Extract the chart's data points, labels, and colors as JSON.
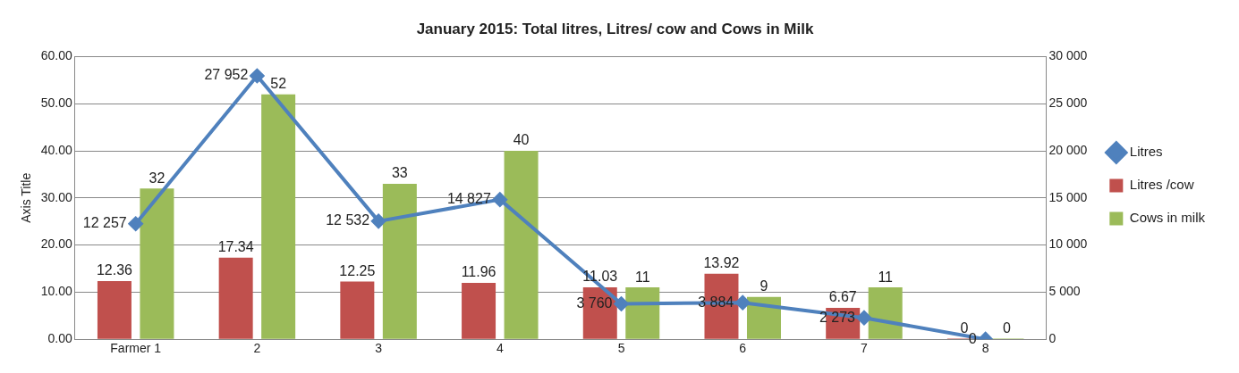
{
  "chart_data": {
    "type": "bar",
    "title": "January 2015: Total litres, Litres/ cow and Cows in Milk",
    "ylabel": "Axis Title",
    "categories": [
      "Farmer 1",
      "2",
      "3",
      "4",
      "5",
      "6",
      "7",
      "8"
    ],
    "series": [
      {
        "name": "Litres /cow",
        "color": "#c0504d",
        "values": [
          12.36,
          17.34,
          12.25,
          11.96,
          11.03,
          13.92,
          6.67,
          0
        ],
        "value_labels": [
          "12.36",
          "17.34",
          "12.25",
          "11.96",
          "11.03",
          "13.92",
          "6.67",
          "0"
        ]
      },
      {
        "name": "Cows in milk",
        "color": "#9bbb59",
        "values": [
          32,
          52,
          33,
          40,
          11,
          9,
          11,
          0
        ],
        "value_labels": [
          "32",
          "52",
          "33",
          "40",
          "11",
          "9",
          "11",
          "0"
        ]
      },
      {
        "name": "Litres",
        "type": "line",
        "axis": "y2",
        "color": "#4f81bd",
        "values": [
          12257,
          27952,
          12532,
          14827,
          3760,
          3884,
          2273,
          0
        ],
        "value_labels": [
          "12 257",
          "27 952",
          "12 532",
          "14 827",
          "3 760",
          "3 884",
          "2 273",
          "0"
        ]
      }
    ],
    "ylim": [
      0,
      60
    ],
    "yticks": [
      {
        "value": 0,
        "label": "0.00"
      },
      {
        "value": 10,
        "label": "10.00"
      },
      {
        "value": 20,
        "label": "20.00"
      },
      {
        "value": 30,
        "label": "30.00"
      },
      {
        "value": 40,
        "label": "40.00"
      },
      {
        "value": 50,
        "label": "50.00"
      },
      {
        "value": 60,
        "label": "60.00"
      }
    ],
    "y2lim": [
      0,
      30000
    ],
    "y2ticks": [
      0,
      {
        "value": 5000,
        "label": "5 000"
      },
      {
        "value": 10000,
        "label": "10 000"
      },
      {
        "value": 15000,
        "label": "15 000"
      },
      {
        "value": 20000,
        "label": "20 000"
      },
      {
        "value": 25000,
        "label": "25 000"
      },
      {
        "value": 30000,
        "label": "30 000"
      }
    ],
    "grid": "y",
    "legend": "right",
    "marker": "diamond",
    "line_style": "solid"
  }
}
